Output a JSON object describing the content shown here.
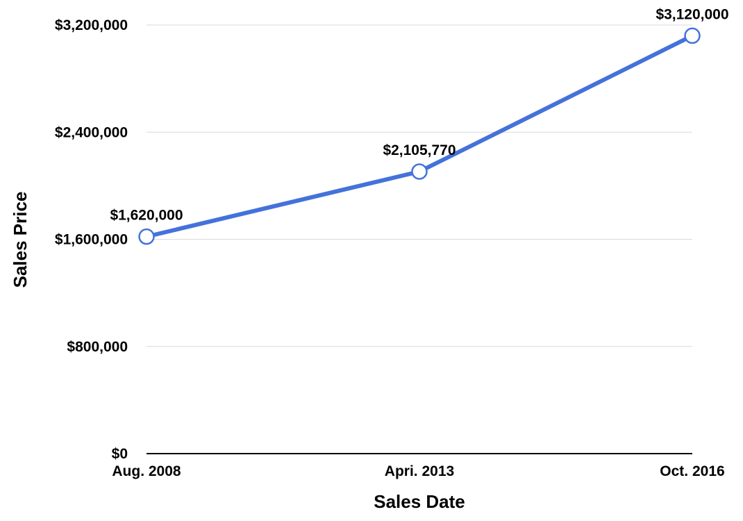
{
  "chart_data": {
    "type": "line",
    "title": "",
    "xlabel": "Sales Date",
    "ylabel": "Sales Price",
    "categories": [
      "Aug. 2008",
      "Apri. 2013",
      "Oct. 2016"
    ],
    "series": [
      {
        "values": [
          1620000,
          2105770,
          3120000
        ],
        "data_labels": [
          "$1,620,000",
          "$2,105,770",
          "$3,120,000"
        ],
        "color": "#4472db"
      }
    ],
    "ylim": [
      0,
      3200000
    ],
    "y_ticks": [
      0,
      800000,
      1600000,
      2400000,
      3200000
    ],
    "y_tick_labels": [
      "$0",
      "$800,000",
      "$1,600,000",
      "$2,400,000",
      "$3,200,000"
    ],
    "grid": true,
    "legend": "none",
    "colors": {
      "line": "#4472db",
      "marker_fill": "#ffffff",
      "grid": "#d9d9d9",
      "baseline": "#000000"
    }
  }
}
